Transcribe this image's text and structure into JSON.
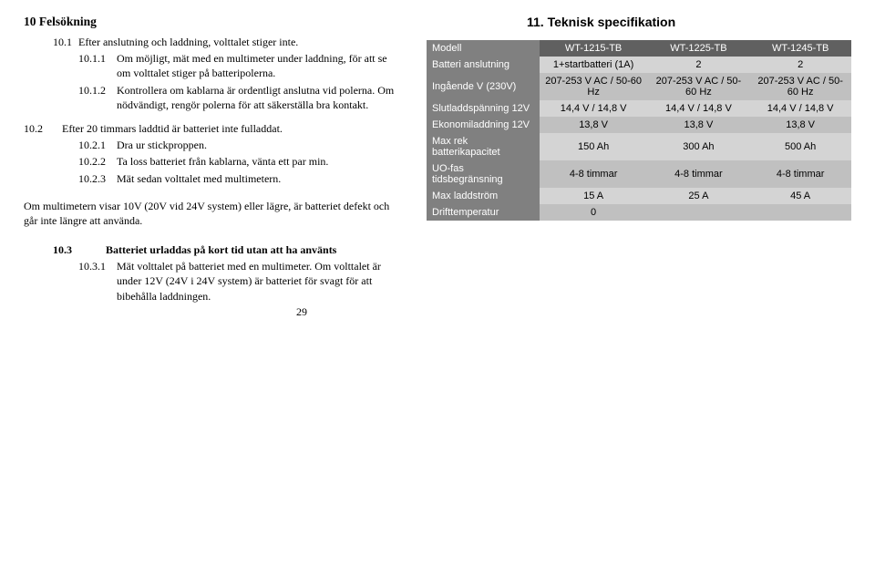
{
  "left": {
    "title": "10 Felsökning",
    "s10_1": {
      "num": "10.1",
      "text": "Efter anslutning och laddning, volttalet stiger inte."
    },
    "s10_1_1": {
      "num": "10.1.1",
      "text": "Om möjligt, mät med en multimeter under laddning, för att se om volttalet stiger på batteripolerna."
    },
    "s10_1_2": {
      "num": "10.1.2",
      "text": "Kontrollera om kablarna är ordentligt anslutna vid polerna. Om nödvändigt, rengör polerna för att säkerställa bra kontakt."
    },
    "s10_2": {
      "num": "10.2",
      "text": "Efter 20 timmars laddtid är batteriet inte fulladdat."
    },
    "s10_2_1": {
      "num": "10.2.1",
      "text": "Dra ur stickproppen."
    },
    "s10_2_2": {
      "num": "10.2.2",
      "text": "Ta loss batteriet från kablarna, vänta ett par min."
    },
    "s10_2_3": {
      "num": "10.2.3",
      "text": "Mät sedan volttalet med multimetern."
    },
    "mm_note": "Om multimetern visar 10V (20V vid 24V system) eller lägre, är batteriet defekt och går inte längre att använda.",
    "s10_3": {
      "num": "10.3",
      "text": "Batteriet urladdas på kort tid utan att ha använts"
    },
    "s10_3_1": {
      "num": "10.3.1",
      "text": "Mät volttalet på batteriet med en multimeter. Om volttalet är under 12V (24V i 24V system) är batteriet för svagt för att bibehålla laddningen."
    },
    "page_number": "29"
  },
  "right": {
    "title": "11. Teknisk specifikation",
    "colors": {
      "header_bg": "#606060",
      "label_bg": "#808080",
      "row_even": "#d4d4d4",
      "row_odd": "#c0c0c0"
    },
    "header_cols": [
      "Modell",
      "WT-1215-TB",
      "WT-1225-TB",
      "WT-1245-TB"
    ],
    "rows": [
      {
        "label": "Batteri anslutning",
        "vals": [
          "1+startbatteri (1A)",
          "2",
          "2"
        ]
      },
      {
        "label": "Ingående V (230V)",
        "vals": [
          "207-253 V AC / 50-60 Hz",
          "207-253 V AC / 50-60 Hz",
          "207-253 V AC / 50-60 Hz"
        ]
      },
      {
        "label": "Slutladdspänning 12V",
        "vals": [
          "14,4 V / 14,8 V",
          "14,4 V / 14,8 V",
          "14,4 V / 14,8 V"
        ]
      },
      {
        "label": "Ekonomiladdning 12V",
        "vals": [
          "13,8 V",
          "13,8 V",
          "13,8 V"
        ]
      },
      {
        "label": "Max rek batterikapacitet",
        "vals": [
          "150 Ah",
          "300 Ah",
          "500 Ah"
        ]
      },
      {
        "label": "UO-fas tidsbegränsning",
        "vals": [
          "4-8 timmar",
          "4-8 timmar",
          "4-8 timmar"
        ]
      },
      {
        "label": "Max laddström",
        "vals": [
          "15 A",
          "25 A",
          "45 A"
        ]
      },
      {
        "label": "Drifttemperatur",
        "vals": [
          "0",
          "",
          ""
        ]
      }
    ]
  }
}
